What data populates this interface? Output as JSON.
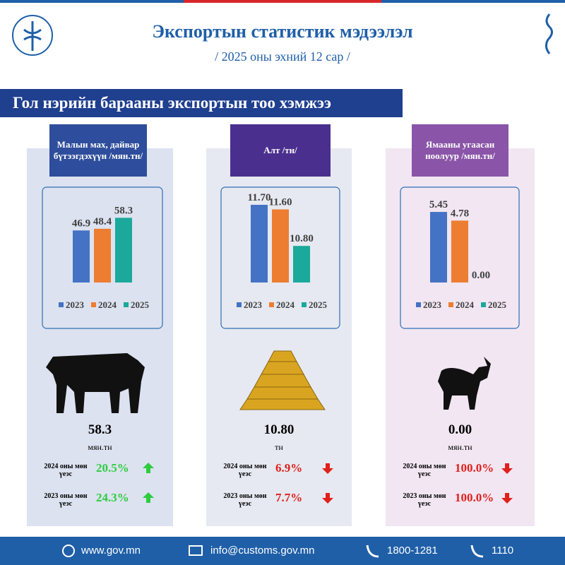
{
  "header": {
    "title": "Экспортын статистик мэдээлэл",
    "subtitle": "/ 2025 оны эхний 12 сар /"
  },
  "section_title": "Гол нэрийн барааны экспортын тоо хэмжээ",
  "chart_data": [
    {
      "type": "bar",
      "title": "Малын мах, дайвар бүтээгдэхүүн /мян.тн/",
      "categories": [
        "2023",
        "2024",
        "2025"
      ],
      "values": [
        46.9,
        48.4,
        58.3
      ],
      "colors": [
        "#4472c4",
        "#ed7d31",
        "#1aa99a"
      ],
      "ylim": [
        0,
        70
      ]
    },
    {
      "type": "bar",
      "title": "Алт /тн/",
      "categories": [
        "2023",
        "2024",
        "2025"
      ],
      "values": [
        11.7,
        11.6,
        10.8
      ],
      "value_labels": [
        "11.70",
        "11.60",
        "10.80"
      ],
      "colors": [
        "#4472c4",
        "#ed7d31",
        "#1aa99a"
      ],
      "ylim": [
        10,
        11.7
      ]
    },
    {
      "type": "bar",
      "title": "Ямааны угаасан ноолуур /мян.тн/",
      "categories": [
        "2023",
        "2024",
        "2025"
      ],
      "values": [
        5.45,
        4.78,
        0
      ],
      "value_labels": [
        "5.45",
        "4.78",
        "0.00"
      ],
      "colors": [
        "#4472c4",
        "#ed7d31",
        "#1aa99a"
      ],
      "ylim": [
        0,
        6
      ]
    }
  ],
  "panels": [
    {
      "unit": "мян.тн",
      "changes": [
        {
          "label": "2024 оны мөн үеэс",
          "value": "20.5%",
          "direction": "up"
        },
        {
          "label": "2023 оны мөн үеэс",
          "value": "24.3%",
          "direction": "up"
        }
      ]
    },
    {
      "unit": "тн",
      "changes": [
        {
          "label": "2024 оны мөн үеэс",
          "value": "6.9%",
          "direction": "down"
        },
        {
          "label": "2023 оны мөн үеэс",
          "value": "7.7%",
          "direction": "down"
        }
      ]
    },
    {
      "unit": "мян.тн",
      "changes": [
        {
          "label": "2024 оны мөн үеэс",
          "value": "100.0%",
          "direction": "down"
        },
        {
          "label": "2023 оны мөн үеэс",
          "value": "100.0%",
          "direction": "down"
        }
      ]
    }
  ],
  "footer": {
    "website": "www.gov.mn",
    "email": "info@customs.gov.mn",
    "phone": "1800-1281",
    "hotline": "1110"
  }
}
